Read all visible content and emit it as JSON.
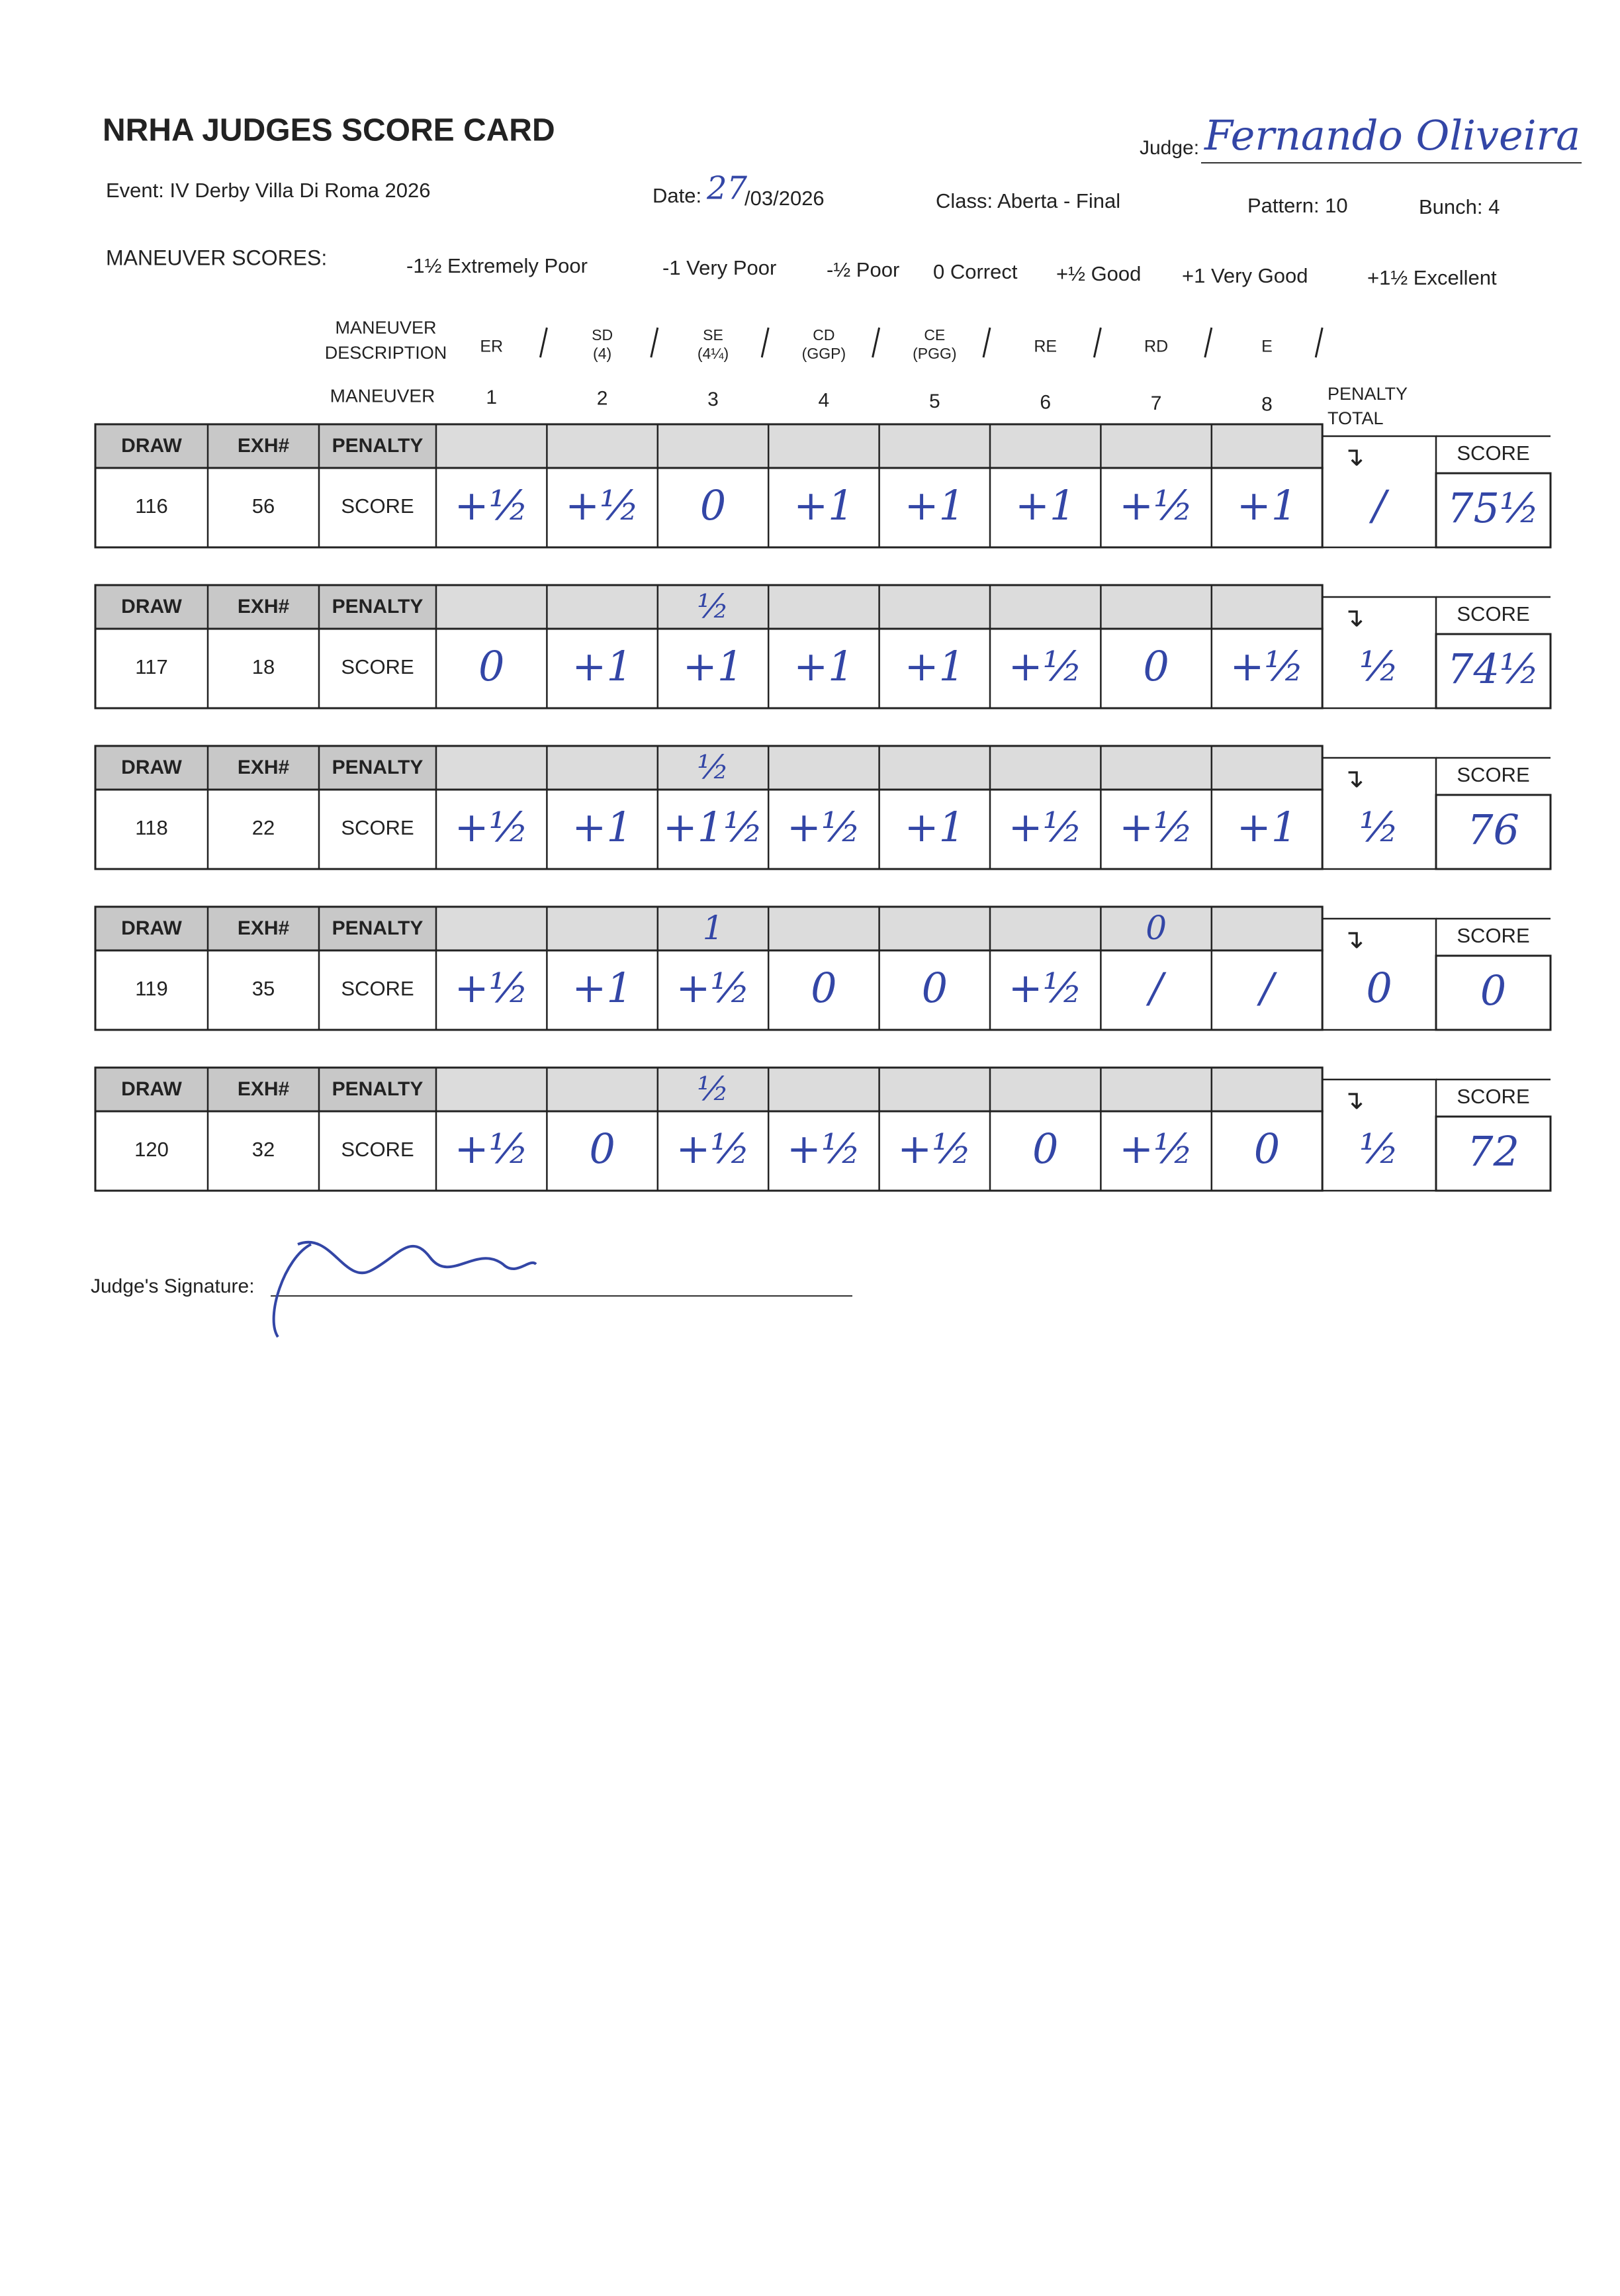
{
  "header": {
    "title": "NRHA JUDGES SCORE CARD",
    "judge_label": "Judge:",
    "judge_name": "Fernando Oliveira",
    "event": "Event: IV Derby Villa Di Roma 2026",
    "date_label": "Date:",
    "date_day": "27",
    "date_rest": "/03/2026",
    "class": "Class: Aberta - Final",
    "pattern": "Pattern: 10",
    "bunch": "Bunch: 4"
  },
  "scale": {
    "label": "MANEUVER SCORES:",
    "items": [
      "-1½ Extremely Poor",
      "-1 Very Poor",
      "-½ Poor",
      "0 Correct",
      "+½ Good",
      "+1 Very Good",
      "+1½ Excellent"
    ]
  },
  "maneuvers": {
    "description_label": [
      "MANEUVER",
      "DESCRIPTION"
    ],
    "number_label": "MANEUVER",
    "descriptions": [
      [
        "ER"
      ],
      [
        "SD",
        "(4)"
      ],
      [
        "SE",
        "(4¼)"
      ],
      [
        "CD",
        "(GGP)"
      ],
      [
        "CE",
        "(PGG)"
      ],
      [
        "RE"
      ],
      [
        "RD"
      ],
      [
        "E"
      ]
    ],
    "numbers": [
      "1",
      "2",
      "3",
      "4",
      "5",
      "6",
      "7",
      "8"
    ],
    "penalty_total_label": [
      "PENALTY",
      "TOTAL"
    ]
  },
  "table": {
    "headers": {
      "draw": "DRAW",
      "exh": "EXH#",
      "penalty": "PENALTY",
      "score_row": "SCORE",
      "penalty_arrow": "↴",
      "score": "SCORE"
    },
    "rows": [
      {
        "draw": "116",
        "exh": "56",
        "penalties": [
          null,
          null,
          null,
          null,
          null,
          null,
          null,
          null
        ],
        "scores": [
          "+½",
          "+½",
          "0",
          "+1",
          "+1",
          "+1",
          "+½",
          "+1"
        ],
        "penalty_total": "/",
        "total": "75½"
      },
      {
        "draw": "117",
        "exh": "18",
        "penalties": [
          null,
          null,
          "½",
          null,
          null,
          null,
          null,
          null
        ],
        "scores": [
          "0",
          "+1",
          "+1",
          "+1",
          "+1",
          "+½",
          "0",
          "+½"
        ],
        "penalty_total": "½",
        "total": "74½"
      },
      {
        "draw": "118",
        "exh": "22",
        "penalties": [
          null,
          null,
          "½",
          null,
          null,
          null,
          null,
          null
        ],
        "scores": [
          "+½",
          "+1",
          "+1½",
          "+½",
          "+1",
          "+½",
          "+½",
          "+1"
        ],
        "penalty_total": "½",
        "total": "76"
      },
      {
        "draw": "119",
        "exh": "35",
        "penalties": [
          null,
          null,
          "1",
          null,
          null,
          null,
          "0",
          null
        ],
        "scores": [
          "+½",
          "+1",
          "+½",
          "0",
          "0",
          "+½",
          "/",
          "/"
        ],
        "penalty_total": "0",
        "total": "0"
      },
      {
        "draw": "120",
        "exh": "32",
        "penalties": [
          null,
          null,
          "½",
          null,
          null,
          null,
          null,
          null
        ],
        "scores": [
          "+½",
          "0",
          "+½",
          "+½",
          "+½",
          "0",
          "+½",
          "0"
        ],
        "penalty_total": "½",
        "total": "72"
      }
    ]
  },
  "signature": {
    "label": "Judge's Signature:"
  }
}
